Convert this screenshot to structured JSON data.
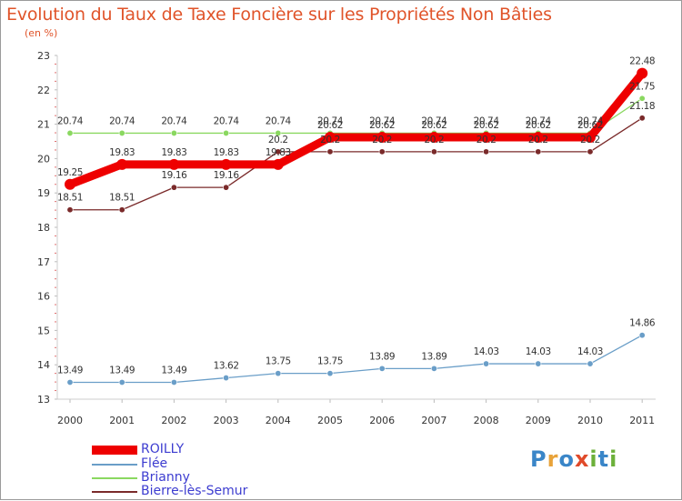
{
  "title": "Evolution du Taux de Taxe Foncière sur les Propriétés Non Bâties",
  "unit": "(en %)",
  "logo": {
    "letters": [
      "P",
      "r",
      "o",
      "x",
      "i",
      "t",
      "i"
    ],
    "colors": [
      "#3a86c8",
      "#e8a33a",
      "#3a86c8",
      "#e04a2a",
      "#6cb03a",
      "#3a86c8",
      "#6cb03a"
    ]
  },
  "chart_data": {
    "type": "line",
    "title": "Evolution du Taux de Taxe Foncière sur les Propriétés Non Bâties",
    "ylabel": "(en %)",
    "xlabel": "",
    "ylim": [
      13,
      23
    ],
    "yticks": [
      13,
      14,
      15,
      16,
      17,
      18,
      19,
      20,
      21,
      22,
      23
    ],
    "categories": [
      "2000",
      "2001",
      "2002",
      "2003",
      "2004",
      "2005",
      "2006",
      "2007",
      "2008",
      "2009",
      "2010",
      "2011"
    ],
    "series": [
      {
        "name": "Bierre-lès-Semur",
        "color": "#7a2a2a",
        "values": [
          18.51,
          18.51,
          19.16,
          19.16,
          20.2,
          20.2,
          20.2,
          20.2,
          20.2,
          20.2,
          20.2,
          21.18
        ],
        "labels": [
          "18.51",
          "18.51",
          "19.16",
          "19.16",
          "20.2",
          "20.2",
          "20.2",
          "20.2",
          "20.2",
          "20.2",
          "20.2",
          "21.18"
        ]
      },
      {
        "name": "Brianny",
        "color": "#8ad860",
        "values": [
          20.74,
          20.74,
          20.74,
          20.74,
          20.74,
          20.74,
          20.74,
          20.74,
          20.74,
          20.74,
          20.74,
          21.75
        ],
        "labels": [
          "20.74",
          "20.74",
          "20.74",
          "20.74",
          "20.74",
          "20.74",
          "20.74",
          "20.74",
          "20.74",
          "20.74",
          "20.74",
          "21.75"
        ]
      },
      {
        "name": "Flée",
        "color": "#6a9ec8",
        "values": [
          13.49,
          13.49,
          13.49,
          13.62,
          13.75,
          13.75,
          13.89,
          13.89,
          14.03,
          14.03,
          14.03,
          14.86
        ],
        "labels": [
          "13.49",
          "13.49",
          "13.49",
          "13.62",
          "13.75",
          "13.75",
          "13.89",
          "13.89",
          "14.03",
          "14.03",
          "14.03",
          "14.86"
        ]
      },
      {
        "name": "ROILLY",
        "color": "#ee0000",
        "values": [
          19.25,
          19.83,
          19.83,
          19.83,
          19.83,
          20.62,
          20.62,
          20.62,
          20.62,
          20.62,
          20.62,
          22.48
        ],
        "labels": [
          "19.25",
          "19.83",
          "19.83",
          "19.83",
          "19.83",
          "20.62",
          "20.62",
          "20.62",
          "20.62",
          "20.62",
          "20.62",
          "22.48"
        ]
      }
    ],
    "legend": [
      "ROILLY",
      "Flée",
      "Brianny",
      "Bierre-lès-Semur"
    ],
    "legend_placement": "bottom-left"
  }
}
